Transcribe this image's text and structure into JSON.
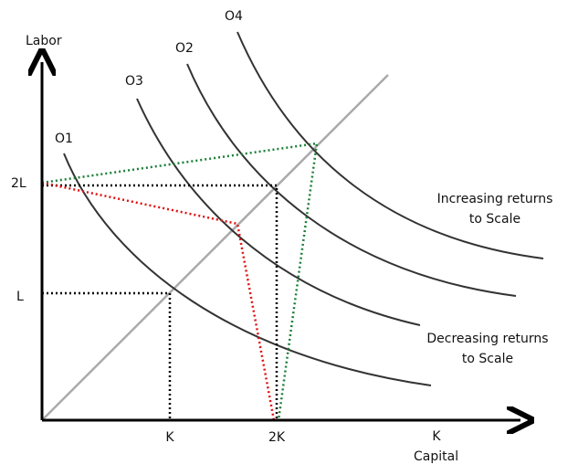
{
  "axes": {
    "y_label": "Labor",
    "x_label": "Capital"
  },
  "curves": [
    {
      "label": "O1"
    },
    {
      "label": "O2"
    },
    {
      "label": "O3"
    },
    {
      "label": "O4"
    }
  ],
  "y_ticks": [
    "2L",
    "L"
  ],
  "x_ticks": [
    "K",
    "2K",
    "K"
  ],
  "annotations": {
    "increasing": [
      "Increasing returns",
      "to Scale"
    ],
    "decreasing": [
      "Decreasing returns",
      "to Scale"
    ]
  }
}
